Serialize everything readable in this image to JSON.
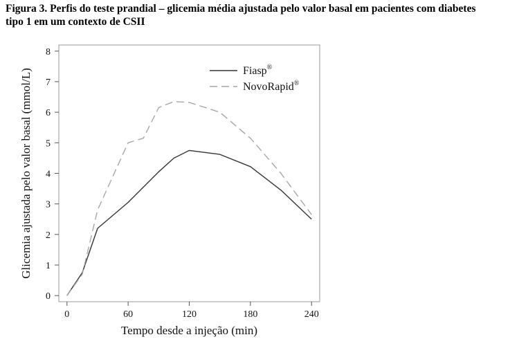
{
  "figure": {
    "caption_line1": "Figura 3. Perfis do teste prandial – glicemia média ajustada pelo valor basal em pacientes com diabetes",
    "caption_line2": "tipo 1 em um contexto de CSII"
  },
  "chart_data": {
    "type": "line",
    "title": "",
    "xlabel": "Tempo desde a injeção (min)",
    "ylabel": "Glicemia ajustada pelo valor basal (mmol/L)",
    "xlim": [
      -8,
      248
    ],
    "ylim": [
      -0.2,
      8.2
    ],
    "xticks": [
      0,
      60,
      120,
      180,
      240
    ],
    "yticks": [
      0,
      1,
      2,
      3,
      4,
      5,
      6,
      7,
      8
    ],
    "grid": false,
    "legend_position": "top-right",
    "series": [
      {
        "name": "Fiasp",
        "name_superscript": "®",
        "style": "solid",
        "color": "#333333",
        "x": [
          0,
          15,
          30,
          60,
          90,
          105,
          120,
          150,
          180,
          210,
          240
        ],
        "y": [
          0,
          0.75,
          2.2,
          3.05,
          4.05,
          4.5,
          4.75,
          4.62,
          4.22,
          3.45,
          2.5
        ]
      },
      {
        "name": "NovoRapid",
        "name_superscript": "®",
        "style": "dashed",
        "color": "#a6a6a6",
        "x": [
          0,
          15,
          30,
          60,
          75,
          90,
          105,
          120,
          150,
          180,
          210,
          240
        ],
        "y": [
          0,
          0.7,
          2.8,
          5.0,
          5.15,
          6.15,
          6.35,
          6.32,
          6.0,
          5.15,
          4.0,
          2.65
        ]
      }
    ]
  }
}
